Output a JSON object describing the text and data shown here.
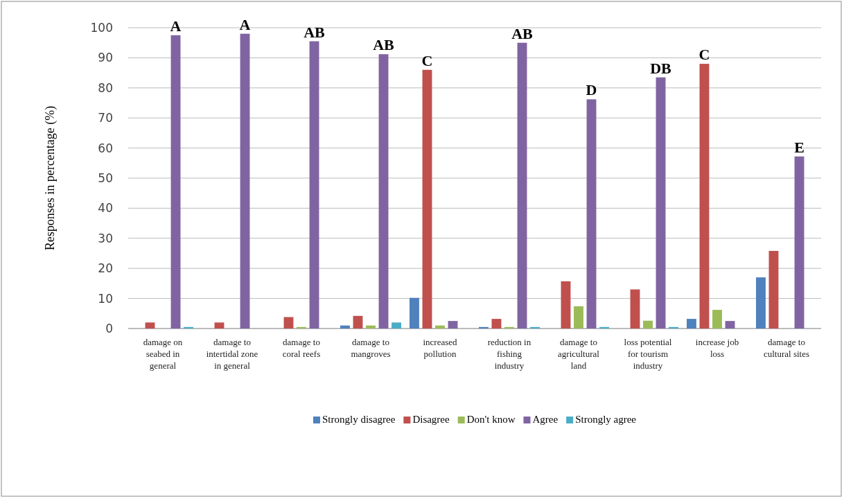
{
  "chart_data": {
    "type": "bar",
    "ylabel": "Responses in percentage  (%)",
    "categories": [
      "damage on seabed in general",
      "damage to intertidal zone in general",
      "damage to coral reefs",
      "damage to mangroves",
      "increased pollution",
      "reduction in fishing industry",
      "damage to agricultural land",
      "loss potential for tourism industry",
      "increase job loss",
      "damage to cultural sites"
    ],
    "series": [
      {
        "name": "Strongly disagree",
        "color": "#4f81bd",
        "values": [
          0,
          0,
          0,
          1,
          10.2,
          0.5,
          0,
          0,
          3.2,
          17
        ]
      },
      {
        "name": "Disagree",
        "color": "#c0504d",
        "values": [
          2,
          2,
          3.8,
          4.2,
          86,
          3.2,
          15.7,
          13,
          88,
          25.8
        ]
      },
      {
        "name": "Don't know",
        "color": "#9bbb59",
        "values": [
          0,
          0,
          0.5,
          1,
          1,
          0.5,
          7.4,
          2.6,
          6.2,
          0
        ]
      },
      {
        "name": "Agree",
        "color": "#8064a2",
        "values": [
          97.5,
          98,
          95.5,
          91.2,
          2.5,
          95,
          76.2,
          83.5,
          2.5,
          57.2
        ]
      },
      {
        "name": "Strongly agree",
        "color": "#4bacc6",
        "values": [
          0.5,
          0,
          0,
          2,
          0,
          0.5,
          0.5,
          0.5,
          0,
          0
        ]
      }
    ],
    "ylim": [
      0,
      100
    ],
    "yticks": [
      0,
      10,
      20,
      30,
      40,
      50,
      60,
      70,
      80,
      90,
      100
    ],
    "grid": "y",
    "legend": "bottom",
    "annotations": [
      "A",
      "A",
      "AB",
      "AB",
      "C",
      "AB",
      "D",
      "DB",
      "C",
      "E"
    ]
  }
}
